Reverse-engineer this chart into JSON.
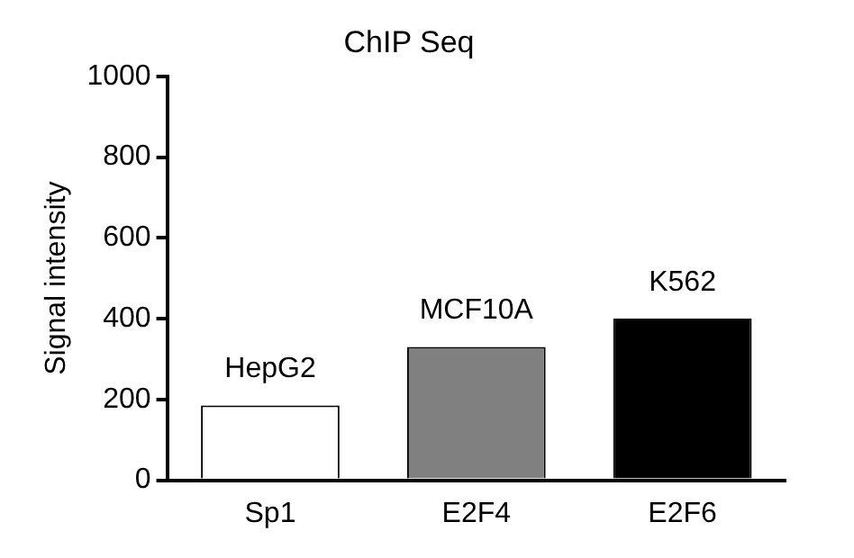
{
  "chart_data": {
    "type": "bar",
    "title": "ChIP Seq",
    "ylabel": "Signal intensity",
    "categories": [
      "Sp1",
      "E2F4",
      "E2F6"
    ],
    "values": [
      185,
      330,
      400
    ],
    "colors": [
      "#ffffff",
      "#808080",
      "#000000"
    ],
    "ylim": [
      0,
      1000
    ],
    "yticks": [
      0,
      200,
      400,
      600,
      800,
      1000
    ],
    "grid": false,
    "legend": false,
    "annotations": [
      {
        "text": "HepG2",
        "x": "Sp1",
        "y": 185
      },
      {
        "text": "MCF10A",
        "x": "E2F4",
        "y": 330
      },
      {
        "text": "K562",
        "x": "E2F6",
        "y": 400
      }
    ]
  }
}
